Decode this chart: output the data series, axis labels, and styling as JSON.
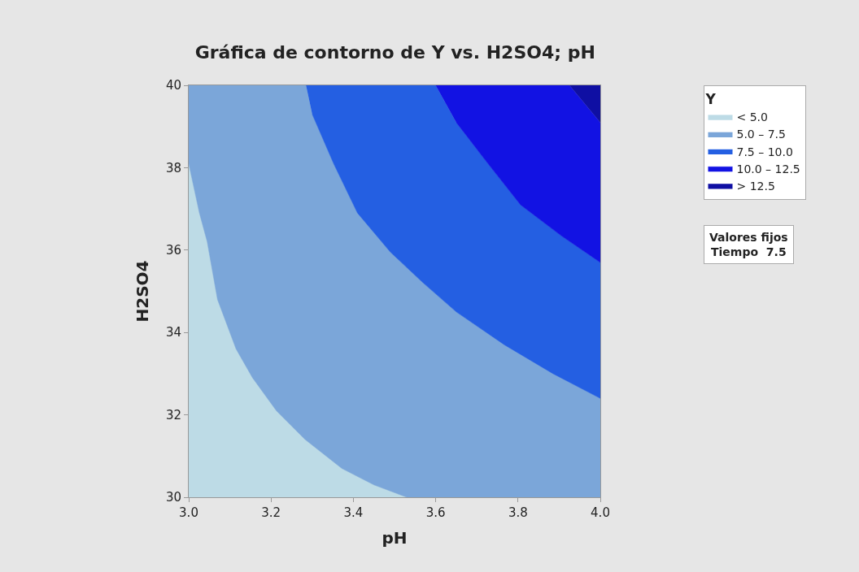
{
  "chart_data": {
    "type": "area",
    "title": "Gráfica de contorno de Y vs. H2SO4; pH",
    "xlabel": "pH",
    "ylabel": "H2SO4",
    "legend_title": "Y",
    "xlim": [
      3.0,
      4.0
    ],
    "xticks": [
      {
        "value": 3.0,
        "label": "3.0"
      },
      3.2,
      3.4,
      3.6,
      3.8,
      {
        "value": 4.0,
        "label": "4.0"
      }
    ],
    "ylim": [
      30,
      40
    ],
    "yticks": [
      30,
      32,
      34,
      36,
      38,
      40
    ],
    "legend": "top right",
    "series": [
      {
        "name": "< 5.0",
        "color": "#bddbe6",
        "x": [
          3.0,
          3.026,
          3.045,
          3.07,
          3.115,
          3.155,
          3.213,
          3.283,
          3.372,
          3.45,
          3.53,
          3.0
        ],
        "values": [
          38.1,
          36.9,
          36.2,
          34.8,
          33.6,
          32.9,
          32.1,
          31.4,
          30.7,
          30.3,
          30.0,
          30.0
        ]
      },
      {
        "name": "5.0 – 7.5",
        "color": "#7ba6d9",
        "x": [
          3.0,
          3.285,
          3.3,
          3.352,
          3.41,
          3.49,
          3.57,
          3.65,
          3.767,
          3.885,
          4.0,
          4.0,
          3.53,
          3.45,
          3.372,
          3.283,
          3.213,
          3.155,
          3.115,
          3.07,
          3.045,
          3.026,
          3.0
        ],
        "values": [
          40,
          40,
          39.3,
          38.1,
          36.9,
          35.95,
          35.2,
          34.5,
          33.7,
          33.0,
          32.4,
          30.0,
          30.0,
          30.3,
          30.7,
          31.4,
          32.1,
          32.9,
          33.6,
          34.8,
          36.2,
          36.9,
          38.1
        ]
      },
      {
        "name": "7.5 – 10.0",
        "color": "#245fe2",
        "x": [
          3.285,
          3.6,
          3.65,
          3.727,
          3.806,
          3.905,
          4.0,
          4.0,
          3.885,
          3.767,
          3.65,
          3.57,
          3.49,
          3.41,
          3.352,
          3.3
        ],
        "values": [
          40,
          40,
          39.1,
          38.1,
          37.1,
          36.35,
          35.7,
          32.4,
          33.0,
          33.7,
          34.5,
          35.2,
          35.95,
          36.9,
          38.1,
          39.3
        ]
      },
      {
        "name": "10.0 – 12.5",
        "color": "#1212e3",
        "x": [
          3.6,
          3.925,
          4.0,
          4.0,
          3.905,
          3.806,
          3.727,
          3.65
        ],
        "values": [
          40,
          40,
          39.1,
          35.7,
          36.35,
          37.1,
          38.1,
          39.1
        ]
      },
      {
        "name": "> 12.5",
        "color": "#0f0fa3",
        "x": [
          3.925,
          4.0,
          4.0
        ],
        "values": [
          40,
          40,
          39.1
        ]
      }
    ],
    "annotations": [
      "Valores fijos\nTiempo  7.5"
    ]
  }
}
